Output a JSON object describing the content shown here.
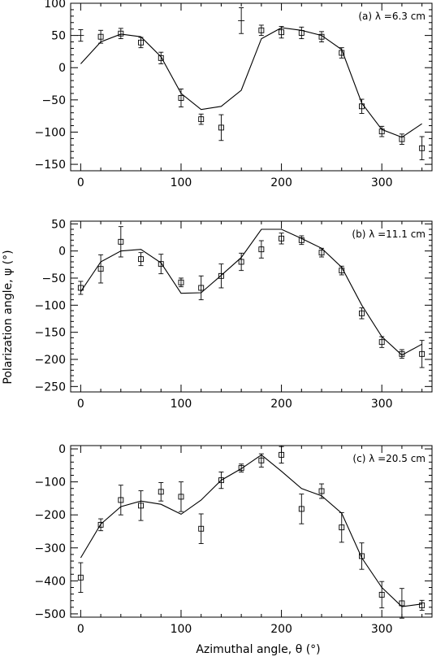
{
  "chart_data": [
    {
      "type": "scatter",
      "panel_label": "(a) λ =6.3 cm",
      "xlim": [
        -10,
        350
      ],
      "ylim": [
        -160,
        100
      ],
      "xticks": [
        0,
        100,
        200,
        300
      ],
      "yticks": [
        100,
        50,
        0,
        -50,
        -100,
        -150
      ],
      "observed": [
        {
          "x": 0,
          "y": 50,
          "err": 9,
          "marker": "cross"
        },
        {
          "x": 20,
          "y": 48,
          "err": 10,
          "marker": "square"
        },
        {
          "x": 40,
          "y": 53,
          "err": 8,
          "marker": "square"
        },
        {
          "x": 60,
          "y": 39,
          "err": 8,
          "marker": "square"
        },
        {
          "x": 80,
          "y": 15,
          "err": 9,
          "marker": "square"
        },
        {
          "x": 100,
          "y": -47,
          "err": 14,
          "marker": "square"
        },
        {
          "x": 120,
          "y": -80,
          "err": 8,
          "marker": "square"
        },
        {
          "x": 140,
          "y": -93,
          "err": 20,
          "marker": "square"
        },
        {
          "x": 160,
          "y": 73,
          "err": 20,
          "marker": "cross"
        },
        {
          "x": 180,
          "y": 58,
          "err": 8,
          "marker": "square"
        },
        {
          "x": 200,
          "y": 55,
          "err": 9,
          "marker": "square"
        },
        {
          "x": 220,
          "y": 54,
          "err": 9,
          "marker": "square"
        },
        {
          "x": 240,
          "y": 48,
          "err": 8,
          "marker": "square"
        },
        {
          "x": 260,
          "y": 23,
          "err": 8,
          "marker": "square"
        },
        {
          "x": 280,
          "y": -60,
          "err": 11,
          "marker": "square"
        },
        {
          "x": 300,
          "y": -99,
          "err": 8,
          "marker": "square"
        },
        {
          "x": 320,
          "y": -111,
          "err": 8,
          "marker": "square"
        },
        {
          "x": 340,
          "y": -125,
          "err": 18,
          "marker": "square"
        }
      ],
      "model": [
        {
          "x": 0,
          "y": 6
        },
        {
          "x": 20,
          "y": 40
        },
        {
          "x": 40,
          "y": 52
        },
        {
          "x": 60,
          "y": 48
        },
        {
          "x": 80,
          "y": 17
        },
        {
          "x": 100,
          "y": -40
        },
        {
          "x": 120,
          "y": -65
        },
        {
          "x": 140,
          "y": -60
        },
        {
          "x": 160,
          "y": -35
        },
        {
          "x": 180,
          "y": 45
        },
        {
          "x": 200,
          "y": 62
        },
        {
          "x": 220,
          "y": 58
        },
        {
          "x": 240,
          "y": 50
        },
        {
          "x": 260,
          "y": 28
        },
        {
          "x": 280,
          "y": -55
        },
        {
          "x": 300,
          "y": -96
        },
        {
          "x": 320,
          "y": -108
        },
        {
          "x": 340,
          "y": -87
        }
      ]
    },
    {
      "type": "scatter",
      "panel_label": "(b) λ =11.1 cm",
      "xlim": [
        -10,
        350
      ],
      "ylim": [
        -260,
        55
      ],
      "xticks": [
        0,
        100,
        200,
        300
      ],
      "yticks": [
        50,
        0,
        -50,
        -100,
        -150,
        -200,
        -250
      ],
      "observed": [
        {
          "x": 0,
          "y": -68,
          "err": 12,
          "marker": "square"
        },
        {
          "x": 20,
          "y": -33,
          "err": 26,
          "marker": "square"
        },
        {
          "x": 40,
          "y": 17,
          "err": 28,
          "marker": "square"
        },
        {
          "x": 60,
          "y": -15,
          "err": 12,
          "marker": "square"
        },
        {
          "x": 80,
          "y": -24,
          "err": 18,
          "marker": "square"
        },
        {
          "x": 100,
          "y": -58,
          "err": 8,
          "marker": "square"
        },
        {
          "x": 120,
          "y": -68,
          "err": 22,
          "marker": "square"
        },
        {
          "x": 140,
          "y": -46,
          "err": 22,
          "marker": "square"
        },
        {
          "x": 160,
          "y": -20,
          "err": 16,
          "marker": "square"
        },
        {
          "x": 180,
          "y": 3,
          "err": 16,
          "marker": "square"
        },
        {
          "x": 200,
          "y": 23,
          "err": 10,
          "marker": "square"
        },
        {
          "x": 220,
          "y": 20,
          "err": 8,
          "marker": "square"
        },
        {
          "x": 240,
          "y": -3,
          "err": 8,
          "marker": "square"
        },
        {
          "x": 260,
          "y": -36,
          "err": 8,
          "marker": "square"
        },
        {
          "x": 280,
          "y": -115,
          "err": 10,
          "marker": "square"
        },
        {
          "x": 300,
          "y": -168,
          "err": 10,
          "marker": "square"
        },
        {
          "x": 320,
          "y": -190,
          "err": 8,
          "marker": "square"
        },
        {
          "x": 340,
          "y": -190,
          "err": 25,
          "marker": "square"
        }
      ],
      "model": [
        {
          "x": 0,
          "y": -75
        },
        {
          "x": 20,
          "y": -20
        },
        {
          "x": 40,
          "y": 0
        },
        {
          "x": 60,
          "y": 3
        },
        {
          "x": 80,
          "y": -22
        },
        {
          "x": 100,
          "y": -78
        },
        {
          "x": 120,
          "y": -77
        },
        {
          "x": 140,
          "y": -45
        },
        {
          "x": 160,
          "y": -12
        },
        {
          "x": 180,
          "y": 40
        },
        {
          "x": 200,
          "y": 40
        },
        {
          "x": 220,
          "y": 23
        },
        {
          "x": 240,
          "y": 5
        },
        {
          "x": 260,
          "y": -30
        },
        {
          "x": 280,
          "y": -100
        },
        {
          "x": 300,
          "y": -158
        },
        {
          "x": 320,
          "y": -192
        },
        {
          "x": 340,
          "y": -172
        }
      ]
    },
    {
      "type": "scatter",
      "panel_label": "(c) λ =20.5 cm",
      "xlim": [
        -10,
        350
      ],
      "ylim": [
        -510,
        10
      ],
      "xticks": [
        0,
        100,
        200,
        300
      ],
      "yticks": [
        0,
        -100,
        -200,
        -300,
        -400,
        -500
      ],
      "observed": [
        {
          "x": 0,
          "y": -390,
          "err": 45,
          "marker": "square"
        },
        {
          "x": 20,
          "y": -230,
          "err": 18,
          "marker": "square"
        },
        {
          "x": 40,
          "y": -155,
          "err": 45,
          "marker": "square"
        },
        {
          "x": 60,
          "y": -172,
          "err": 45,
          "marker": "square"
        },
        {
          "x": 80,
          "y": -130,
          "err": 28,
          "marker": "square"
        },
        {
          "x": 100,
          "y": -145,
          "err": 45,
          "marker": "square"
        },
        {
          "x": 120,
          "y": -242,
          "err": 45,
          "marker": "square"
        },
        {
          "x": 140,
          "y": -95,
          "err": 25,
          "marker": "square"
        },
        {
          "x": 160,
          "y": -58,
          "err": 12,
          "marker": "square"
        },
        {
          "x": 180,
          "y": -35,
          "err": 20,
          "marker": "square"
        },
        {
          "x": 200,
          "y": -18,
          "err": 25,
          "marker": "square"
        },
        {
          "x": 220,
          "y": -182,
          "err": 45,
          "marker": "square"
        },
        {
          "x": 240,
          "y": -128,
          "err": 22,
          "marker": "square"
        },
        {
          "x": 260,
          "y": -238,
          "err": 45,
          "marker": "square"
        },
        {
          "x": 280,
          "y": -325,
          "err": 40,
          "marker": "square"
        },
        {
          "x": 300,
          "y": -442,
          "err": 40,
          "marker": "square"
        },
        {
          "x": 320,
          "y": -468,
          "err": 45,
          "marker": "square"
        },
        {
          "x": 340,
          "y": -474,
          "err": 15,
          "marker": "square"
        }
      ],
      "model": [
        {
          "x": 0,
          "y": -330
        },
        {
          "x": 20,
          "y": -228
        },
        {
          "x": 40,
          "y": -175
        },
        {
          "x": 60,
          "y": -158
        },
        {
          "x": 80,
          "y": -168
        },
        {
          "x": 100,
          "y": -198
        },
        {
          "x": 120,
          "y": -155
        },
        {
          "x": 140,
          "y": -95
        },
        {
          "x": 160,
          "y": -60
        },
        {
          "x": 180,
          "y": -18
        },
        {
          "x": 200,
          "y": -68
        },
        {
          "x": 220,
          "y": -120
        },
        {
          "x": 240,
          "y": -142
        },
        {
          "x": 260,
          "y": -195
        },
        {
          "x": 280,
          "y": -330
        },
        {
          "x": 300,
          "y": -420
        },
        {
          "x": 320,
          "y": -478
        },
        {
          "x": 340,
          "y": -470
        }
      ]
    }
  ],
  "shared": {
    "xlabel": "Azimuthal angle, θ (°)",
    "ylabel": "Polarization angle, ψ (°)"
  }
}
